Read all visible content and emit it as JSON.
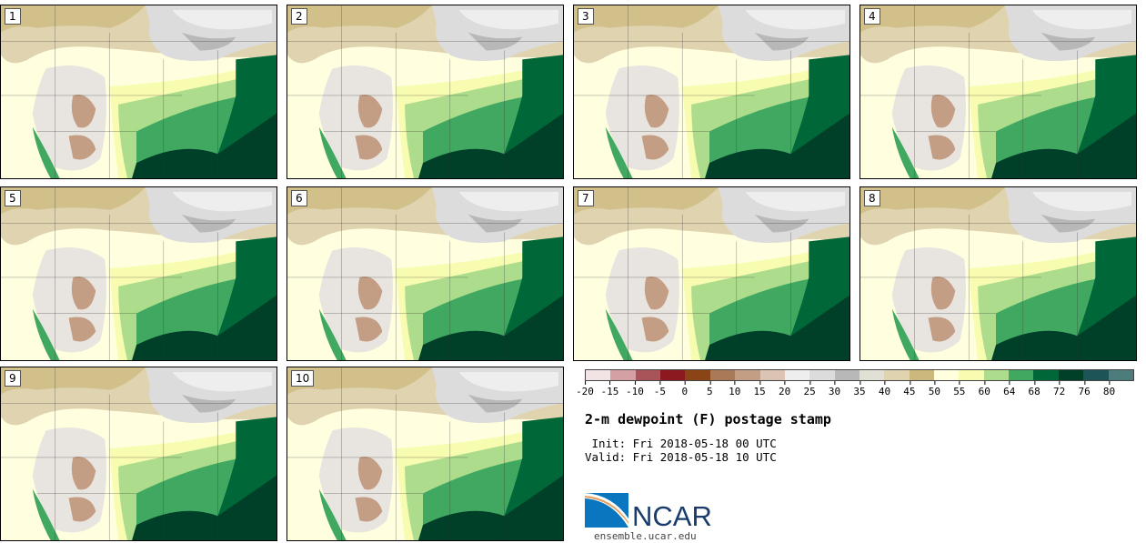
{
  "chart_data": {
    "type": "heatmap",
    "title": "2-m dewpoint (F) postage stamp",
    "init": " Init: Fri 2018-05-18 00 UTC",
    "valid": "Valid: Fri 2018-05-18 10 UTC",
    "members": [
      "1",
      "2",
      "3",
      "4",
      "5",
      "6",
      "7",
      "8",
      "9",
      "10"
    ],
    "colorbar": {
      "ticks": [
        "-20",
        "-15",
        "-10",
        "-5",
        "0",
        "5",
        "10",
        "15",
        "20",
        "25",
        "30",
        "35",
        "40",
        "45",
        "50",
        "55",
        "60",
        "64",
        "68",
        "72",
        "76",
        "80"
      ],
      "colors": [
        "#f2e4e4",
        "#d4a0a4",
        "#a85458",
        "#8c1820",
        "#8a4416",
        "#aa7a58",
        "#c49e84",
        "#dcc4b4",
        "#eeeeee",
        "#dcdcdc",
        "#b8b8b8",
        "#e0e0d4",
        "#e0d4b0",
        "#ccb87c",
        "#ffffe0",
        "#f8fcb0",
        "#acdc8c",
        "#40a860",
        "#006838",
        "#004028",
        "#1c5458",
        "#4c7c7c"
      ]
    }
  },
  "footer": {
    "logo_text": "NCAR",
    "url": "ensemble.ucar.edu"
  }
}
